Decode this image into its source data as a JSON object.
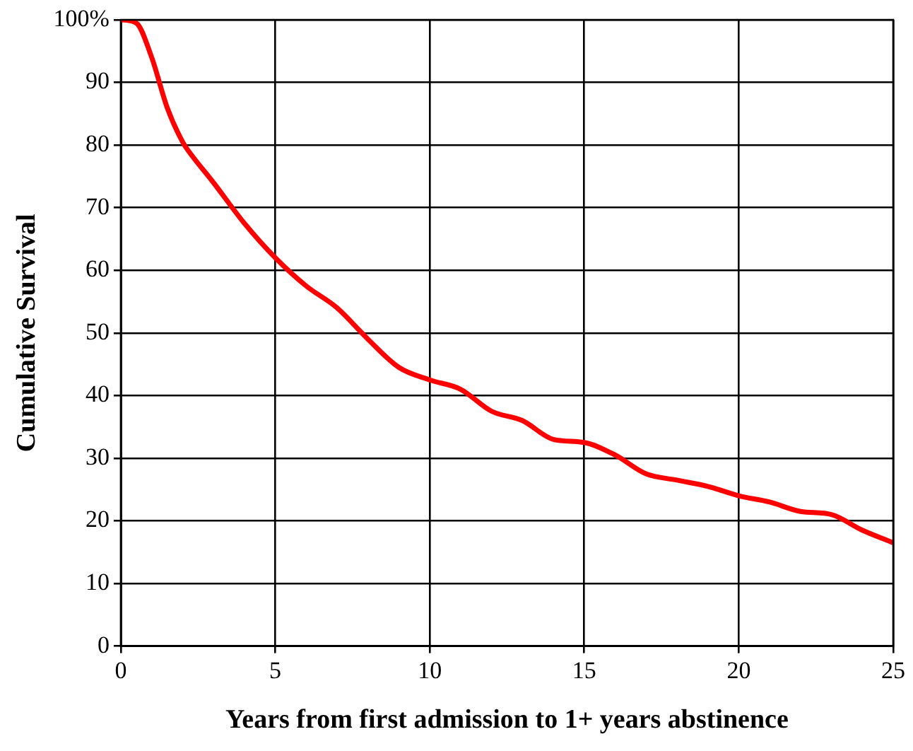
{
  "chart_data": {
    "type": "line",
    "xlabel": "Years from first admission to 1+ years abstinence",
    "ylabel": "Cumulative Survival",
    "x": [
      0,
      0.5,
      1,
      1.5,
      2,
      2.2,
      3,
      4,
      5,
      6,
      7,
      8,
      9,
      10,
      11,
      12,
      13,
      14,
      15,
      16,
      17,
      18,
      19,
      20,
      21,
      22,
      23,
      24,
      25
    ],
    "series": [
      {
        "color": "#ff0000",
        "values": [
          100,
          99.5,
          94,
          86,
          80.5,
          79,
          74,
          67.5,
          62,
          57.5,
          54,
          49,
          44.5,
          42.5,
          41,
          37.5,
          36,
          33,
          32.5,
          30.5,
          27.5,
          26.5,
          25.5,
          24,
          23,
          21.5,
          21,
          18.5,
          16.5
        ]
      }
    ],
    "xlim": [
      0,
      25
    ],
    "xticks": [
      0,
      5,
      10,
      15,
      20,
      25
    ],
    "ylim": [
      0,
      100
    ],
    "yticks": [
      0,
      10,
      20,
      30,
      40,
      50,
      60,
      70,
      80,
      90,
      {
        "value": 100,
        "label": "100%"
      }
    ],
    "grid": true,
    "legend": false,
    "marker": "none",
    "line_style": "solid"
  }
}
